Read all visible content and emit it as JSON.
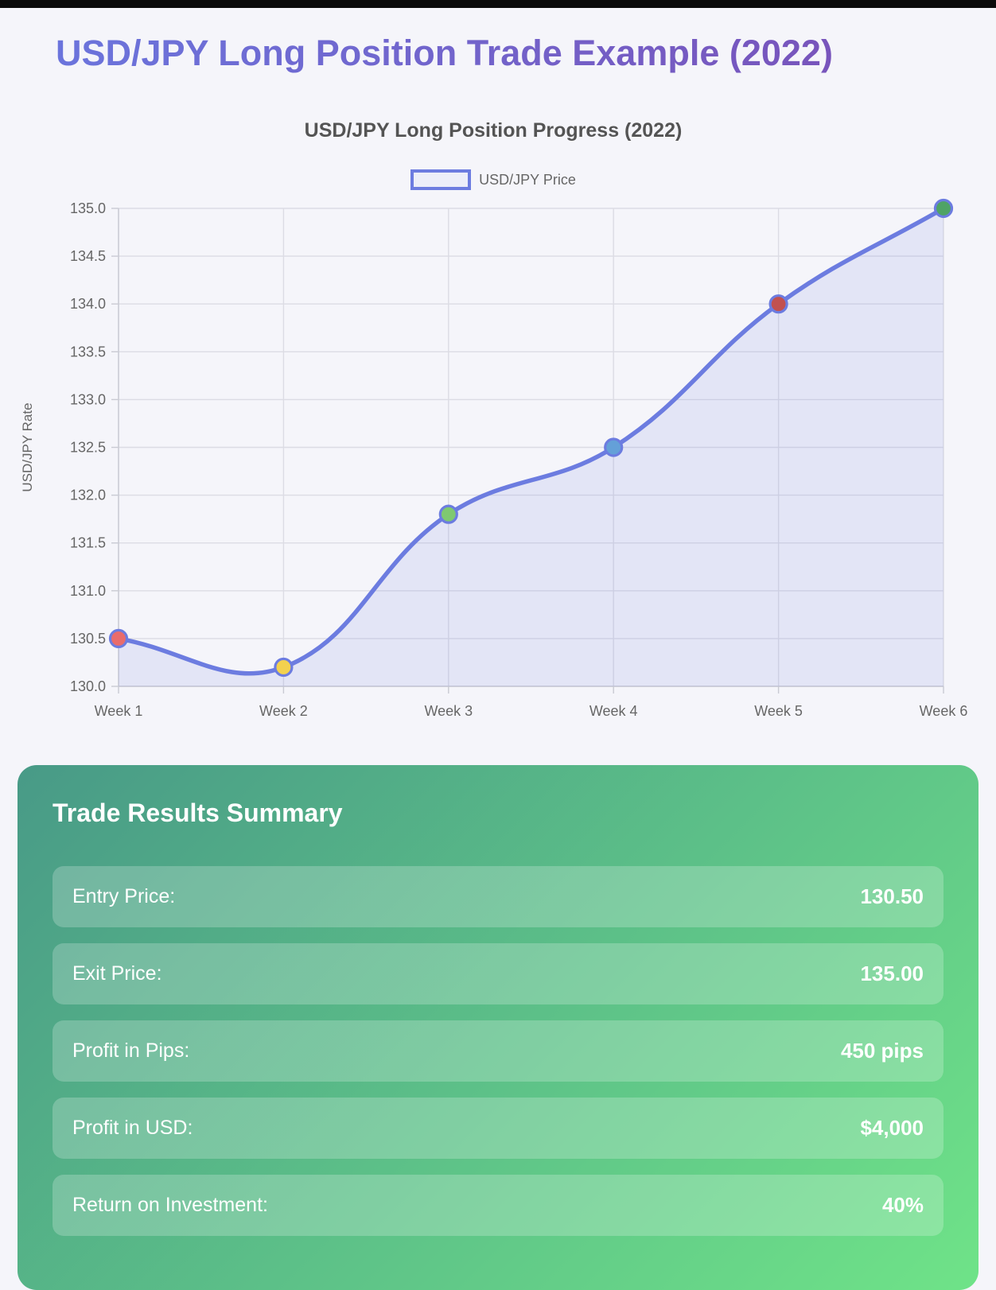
{
  "page": {
    "title": "USD/JPY Long Position Trade Example (2022)"
  },
  "chart": {
    "title": "USD/JPY Long Position Progress (2022)",
    "legend_label": "USD/JPY Price"
  },
  "chart_data": {
    "type": "line",
    "categories": [
      "Week 1",
      "Week 2",
      "Week 3",
      "Week 4",
      "Week 5",
      "Week 6"
    ],
    "series": [
      {
        "name": "USD/JPY Price",
        "values": [
          130.5,
          130.2,
          131.8,
          132.5,
          134.0,
          135.0
        ]
      }
    ],
    "title": "USD/JPY Long Position Progress (2022)",
    "xlabel": "",
    "ylabel": "USD/JPY Rate",
    "ylim": [
      130.0,
      135.0
    ],
    "ytick_step": 0.5,
    "grid": true,
    "legend_position": "top",
    "smooth": true,
    "line_color": "#6c7ce0",
    "fill_color": "rgba(108,124,224,0.13)",
    "point_colors": [
      "#e96c6c",
      "#f3d14e",
      "#7fc970",
      "#64a0d8",
      "#c25150",
      "#4fa366"
    ]
  },
  "summary": {
    "heading": "Trade Results Summary",
    "rows": [
      {
        "label": "Entry Price:",
        "value": "130.50"
      },
      {
        "label": "Exit Price:",
        "value": "135.00"
      },
      {
        "label": "Profit in Pips:",
        "value": "450 pips"
      },
      {
        "label": "Profit in USD:",
        "value": "$4,000"
      },
      {
        "label": "Return on Investment:",
        "value": "40%"
      }
    ]
  },
  "colors": {
    "page_background": "#f5f5fa",
    "top_bar": "#0b0b0b",
    "title_gradient": [
      "#6b74dc",
      "#7a4fb6"
    ],
    "card_gradient": [
      "#489a87",
      "#6fe388"
    ],
    "grid": "#dcdce4",
    "axis_border": "#c9cad3",
    "tick_text": "#666666"
  }
}
